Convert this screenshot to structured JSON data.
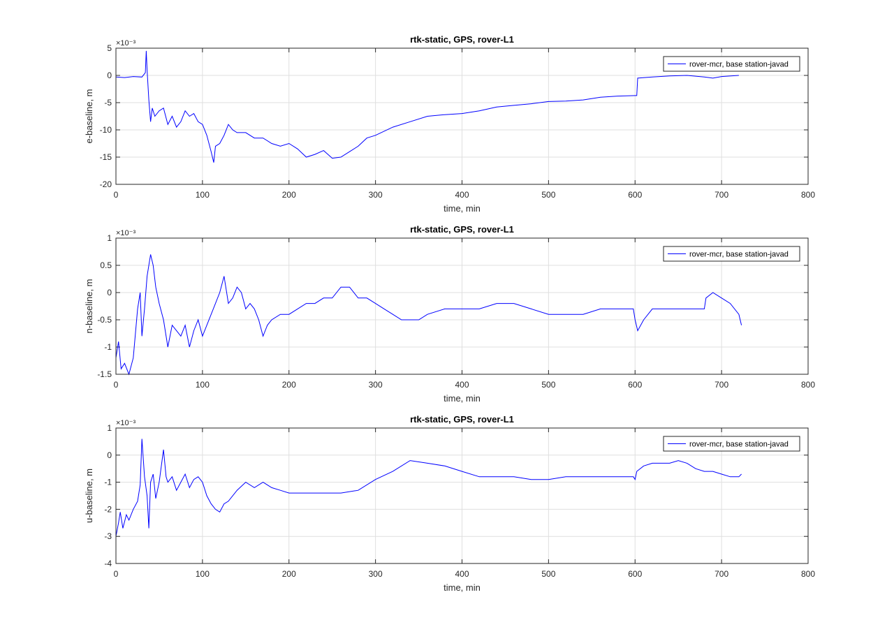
{
  "chart_data": [
    {
      "type": "line",
      "title": "rtk-static, GPS, rover-L1",
      "xlabel": "time, min",
      "ylabel": "e-baseline, m",
      "exponent_label": "×10⁻³",
      "xlim": [
        0,
        800
      ],
      "ylim": [
        -20,
        5
      ],
      "xticks": [
        "0",
        "100",
        "200",
        "300",
        "400",
        "500",
        "600",
        "700",
        "800"
      ],
      "yticks": [
        "5",
        "0",
        "-5",
        "-10",
        "-15",
        "-20"
      ],
      "grid": true,
      "legend_position": "top-right",
      "series": [
        {
          "name": "rover-mcr, base station-javad",
          "color": "#0000ff",
          "x": [
            0,
            10,
            20,
            30,
            34,
            35,
            36,
            38,
            40,
            42,
            45,
            50,
            55,
            60,
            65,
            70,
            75,
            80,
            85,
            90,
            95,
            100,
            105,
            110,
            113,
            115,
            120,
            125,
            130,
            135,
            140,
            150,
            160,
            170,
            180,
            190,
            200,
            210,
            220,
            230,
            240,
            250,
            260,
            270,
            280,
            290,
            300,
            320,
            340,
            360,
            380,
            400,
            420,
            440,
            460,
            480,
            500,
            520,
            540,
            560,
            580,
            600,
            602,
            603,
            620,
            640,
            660,
            680,
            690,
            700,
            720
          ],
          "y": [
            -0.3,
            -0.4,
            -0.2,
            -0.3,
            0.5,
            4.5,
            1.0,
            -4.5,
            -8.5,
            -6.0,
            -7.5,
            -6.5,
            -6.0,
            -9.0,
            -7.5,
            -9.5,
            -8.5,
            -6.5,
            -7.5,
            -7.0,
            -8.5,
            -9.0,
            -11.0,
            -14.0,
            -16.0,
            -13.0,
            -12.5,
            -11.0,
            -9.0,
            -10.0,
            -10.5,
            -10.5,
            -11.5,
            -11.5,
            -12.5,
            -13.0,
            -12.5,
            -13.5,
            -15.0,
            -14.5,
            -13.8,
            -15.2,
            -15.0,
            -14.0,
            -13.0,
            -11.5,
            -11.0,
            -9.5,
            -8.5,
            -7.5,
            -7.2,
            -7.0,
            -6.5,
            -5.8,
            -5.5,
            -5.2,
            -4.8,
            -4.7,
            -4.5,
            -4.0,
            -3.8,
            -3.7,
            -3.7,
            -0.5,
            -0.3,
            -0.1,
            0.0,
            -0.3,
            -0.5,
            -0.2,
            0.0
          ]
        }
      ]
    },
    {
      "type": "line",
      "title": "rtk-static, GPS, rover-L1",
      "xlabel": "time, min",
      "ylabel": "n-baseline, m",
      "exponent_label": "×10⁻³",
      "xlim": [
        0,
        800
      ],
      "ylim": [
        -1.5,
        1
      ],
      "xticks": [
        "0",
        "100",
        "200",
        "300",
        "400",
        "500",
        "600",
        "700",
        "800"
      ],
      "yticks": [
        "1",
        "0.5",
        "0",
        "-0.5",
        "-1",
        "-1.5"
      ],
      "grid": true,
      "legend_position": "top-right",
      "series": [
        {
          "name": "rover-mcr, base station-javad",
          "color": "#0000ff",
          "x": [
            0,
            3,
            6,
            10,
            15,
            20,
            25,
            28,
            30,
            33,
            36,
            40,
            43,
            46,
            50,
            55,
            60,
            65,
            70,
            75,
            80,
            85,
            90,
            95,
            100,
            105,
            110,
            115,
            120,
            125,
            130,
            135,
            140,
            145,
            150,
            155,
            160,
            165,
            170,
            175,
            180,
            190,
            200,
            210,
            220,
            230,
            240,
            250,
            260,
            270,
            280,
            290,
            300,
            310,
            320,
            330,
            340,
            350,
            360,
            380,
            400,
            420,
            440,
            460,
            480,
            500,
            520,
            540,
            560,
            580,
            598,
            600,
            603,
            610,
            620,
            640,
            660,
            680,
            682,
            690,
            700,
            710,
            720,
            723
          ],
          "y": [
            -1.2,
            -0.9,
            -1.4,
            -1.3,
            -1.5,
            -1.2,
            -0.3,
            0.0,
            -0.8,
            -0.3,
            0.3,
            0.7,
            0.5,
            0.1,
            -0.2,
            -0.5,
            -1.0,
            -0.6,
            -0.7,
            -0.8,
            -0.6,
            -1.0,
            -0.7,
            -0.5,
            -0.8,
            -0.6,
            -0.4,
            -0.2,
            0.0,
            0.3,
            -0.2,
            -0.1,
            0.1,
            0.0,
            -0.3,
            -0.2,
            -0.3,
            -0.5,
            -0.8,
            -0.6,
            -0.5,
            -0.4,
            -0.4,
            -0.3,
            -0.2,
            -0.2,
            -0.1,
            -0.1,
            0.1,
            0.1,
            -0.1,
            -0.1,
            -0.2,
            -0.3,
            -0.4,
            -0.5,
            -0.5,
            -0.5,
            -0.4,
            -0.3,
            -0.3,
            -0.3,
            -0.2,
            -0.2,
            -0.3,
            -0.4,
            -0.4,
            -0.4,
            -0.3,
            -0.3,
            -0.3,
            -0.5,
            -0.7,
            -0.5,
            -0.3,
            -0.3,
            -0.3,
            -0.3,
            -0.1,
            0.0,
            -0.1,
            -0.2,
            -0.4,
            -0.6
          ]
        }
      ]
    },
    {
      "type": "line",
      "title": "rtk-static, GPS, rover-L1",
      "xlabel": "time, min",
      "ylabel": "u-baseline, m",
      "exponent_label": "×10⁻³",
      "xlim": [
        0,
        800
      ],
      "ylim": [
        -4,
        1
      ],
      "xticks": [
        "0",
        "100",
        "200",
        "300",
        "400",
        "500",
        "600",
        "700",
        "800"
      ],
      "yticks": [
        "1",
        "0",
        "-1",
        "-2",
        "-3",
        "-4"
      ],
      "grid": true,
      "legend_position": "top-right",
      "series": [
        {
          "name": "rover-mcr, base station-javad",
          "color": "#0000ff",
          "x": [
            0,
            3,
            5,
            8,
            12,
            15,
            20,
            25,
            28,
            30,
            33,
            36,
            38,
            40,
            43,
            46,
            50,
            55,
            58,
            60,
            65,
            70,
            75,
            80,
            85,
            90,
            95,
            100,
            105,
            110,
            115,
            120,
            125,
            130,
            140,
            150,
            160,
            170,
            180,
            190,
            200,
            220,
            240,
            260,
            280,
            300,
            320,
            340,
            360,
            380,
            400,
            420,
            440,
            460,
            480,
            500,
            520,
            540,
            560,
            580,
            598,
            600,
            602,
            610,
            620,
            640,
            650,
            660,
            670,
            680,
            690,
            700,
            710,
            720,
            723
          ],
          "y": [
            -3.0,
            -2.5,
            -2.1,
            -2.7,
            -2.2,
            -2.4,
            -2.0,
            -1.7,
            -1.1,
            0.6,
            -0.8,
            -1.5,
            -2.7,
            -1.0,
            -0.7,
            -1.6,
            -1.0,
            0.2,
            -0.8,
            -1.0,
            -0.8,
            -1.3,
            -1.0,
            -0.7,
            -1.2,
            -0.9,
            -0.8,
            -1.0,
            -1.5,
            -1.8,
            -2.0,
            -2.1,
            -1.8,
            -1.7,
            -1.3,
            -1.0,
            -1.2,
            -1.0,
            -1.2,
            -1.3,
            -1.4,
            -1.4,
            -1.4,
            -1.4,
            -1.3,
            -0.9,
            -0.6,
            -0.2,
            -0.3,
            -0.4,
            -0.6,
            -0.8,
            -0.8,
            -0.8,
            -0.9,
            -0.9,
            -0.8,
            -0.8,
            -0.8,
            -0.8,
            -0.8,
            -0.9,
            -0.6,
            -0.4,
            -0.3,
            -0.3,
            -0.2,
            -0.3,
            -0.5,
            -0.6,
            -0.6,
            -0.7,
            -0.8,
            -0.8,
            -0.7
          ]
        }
      ]
    }
  ]
}
